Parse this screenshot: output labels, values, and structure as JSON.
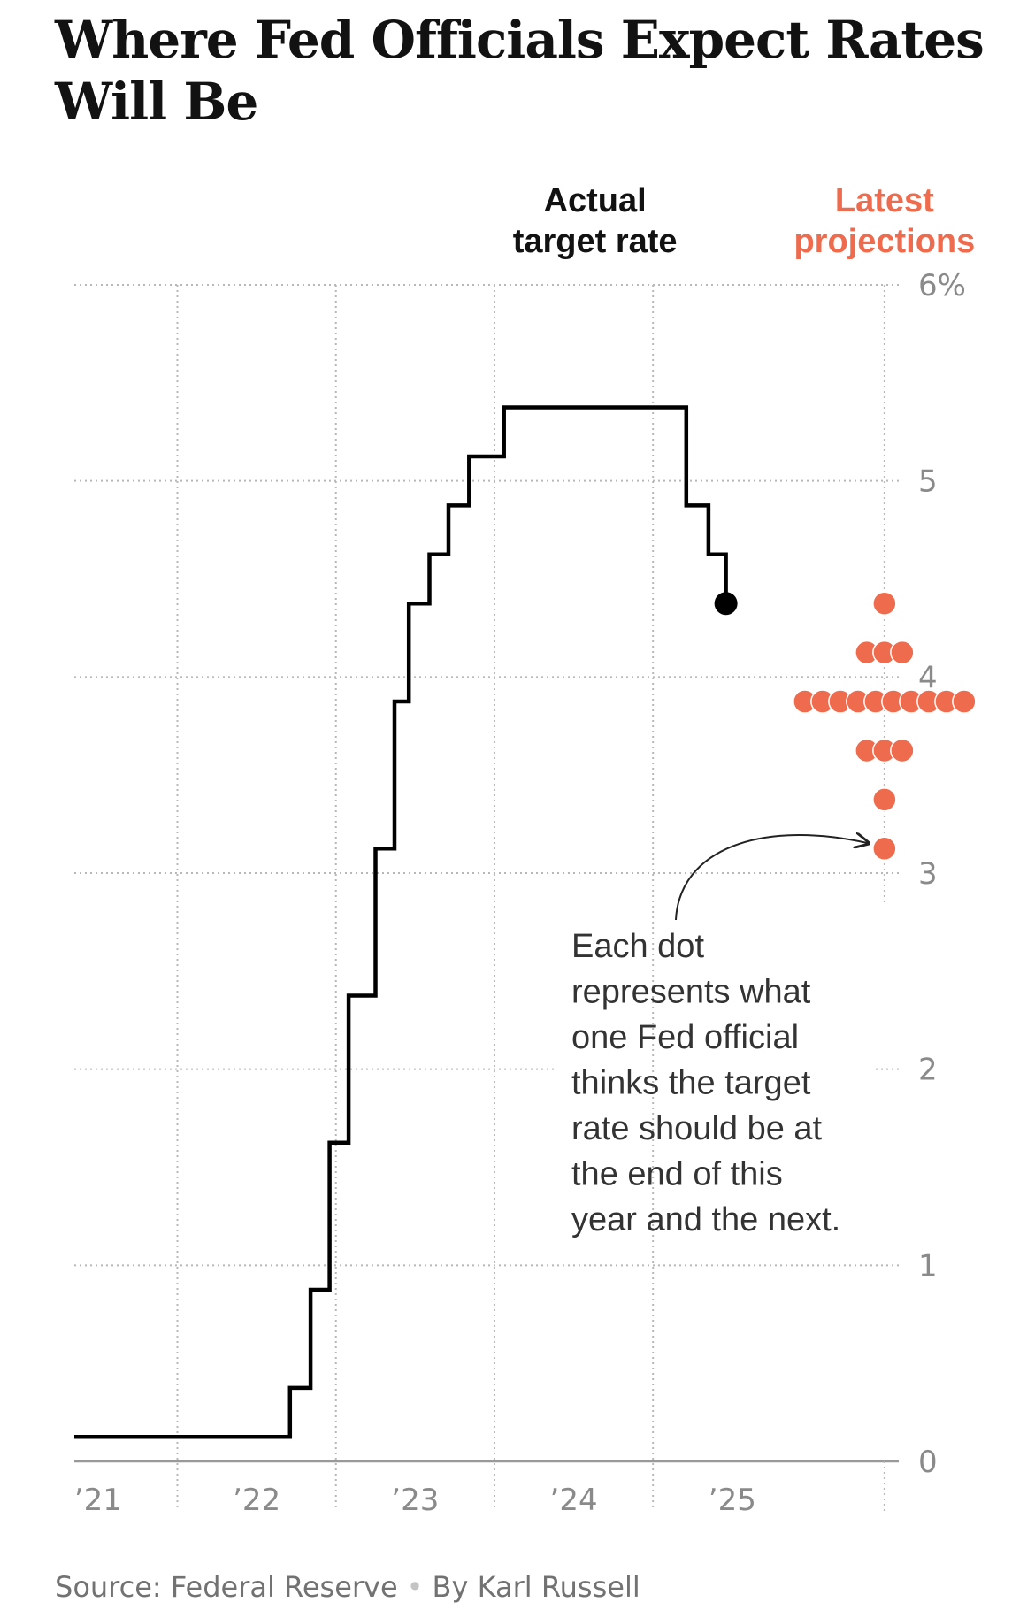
{
  "title": "Where Fed Officials Expect Rates Will Be",
  "footer": {
    "source": "Source: Federal Reserve",
    "separator": "•",
    "byline": "By Karl Russell"
  },
  "colors": {
    "actual": "#000000",
    "projection": "#ee6b4d",
    "grid": "#b8b8b8",
    "axis": "#999999",
    "tick_text": "#8a8a8a"
  },
  "chart_data": {
    "type": "line",
    "xlim": [
      2020.85,
      2026.05
    ],
    "ylim": [
      0,
      6
    ],
    "x_ticks": [
      {
        "value": 2021,
        "label": "’21"
      },
      {
        "value": 2022,
        "label": "’22"
      },
      {
        "value": 2023,
        "label": "’23"
      },
      {
        "value": 2024,
        "label": "’24"
      },
      {
        "value": 2025,
        "label": "’25"
      }
    ],
    "y_ticks": [
      {
        "value": 0,
        "label": "0"
      },
      {
        "value": 1,
        "label": "1"
      },
      {
        "value": 2,
        "label": "2"
      },
      {
        "value": 3,
        "label": "3"
      },
      {
        "value": 4,
        "label": "4"
      },
      {
        "value": 5,
        "label": "5"
      },
      {
        "value": 6,
        "label": "6%"
      }
    ],
    "grid": true,
    "series": [
      {
        "name": "Actual target rate",
        "type": "step",
        "color": "#000000",
        "points": [
          [
            2020.85,
            0.125
          ],
          [
            2022.21,
            0.125
          ],
          [
            2022.21,
            0.375
          ],
          [
            2022.34,
            0.375
          ],
          [
            2022.34,
            0.875
          ],
          [
            2022.46,
            0.875
          ],
          [
            2022.46,
            1.625
          ],
          [
            2022.58,
            1.625
          ],
          [
            2022.58,
            2.375
          ],
          [
            2022.75,
            2.375
          ],
          [
            2022.75,
            3.125
          ],
          [
            2022.87,
            3.125
          ],
          [
            2022.87,
            3.875
          ],
          [
            2022.96,
            3.875
          ],
          [
            2022.96,
            4.375
          ],
          [
            2023.09,
            4.375
          ],
          [
            2023.09,
            4.625
          ],
          [
            2023.21,
            4.625
          ],
          [
            2023.21,
            4.875
          ],
          [
            2023.34,
            4.875
          ],
          [
            2023.34,
            5.125
          ],
          [
            2023.56,
            5.125
          ],
          [
            2023.56,
            5.375
          ],
          [
            2024.71,
            5.375
          ],
          [
            2024.71,
            4.875
          ],
          [
            2024.85,
            4.875
          ],
          [
            2024.85,
            4.625
          ],
          [
            2024.96,
            4.625
          ],
          [
            2024.96,
            4.375
          ]
        ],
        "end_marker": [
          2024.96,
          4.375
        ]
      },
      {
        "name": "Latest projections",
        "type": "dot_plot",
        "color": "#ee6b4d",
        "x": 2025.96,
        "levels": [
          {
            "y": 4.375,
            "count": 1
          },
          {
            "y": 4.125,
            "count": 3
          },
          {
            "y": 3.875,
            "count": 10
          },
          {
            "y": 3.625,
            "count": 3
          },
          {
            "y": 3.375,
            "count": 1
          },
          {
            "y": 3.125,
            "count": 1
          }
        ]
      }
    ],
    "labels": {
      "actual": [
        "Actual",
        "target rate"
      ],
      "projections": [
        "Latest",
        "projections"
      ]
    },
    "annotation": {
      "lines": [
        "Each dot",
        "represents what",
        "one Fed official",
        "thinks the target",
        "rate should be at",
        "the end of this",
        "year and the next."
      ],
      "points_to": [
        2025.96,
        3.125
      ]
    }
  }
}
